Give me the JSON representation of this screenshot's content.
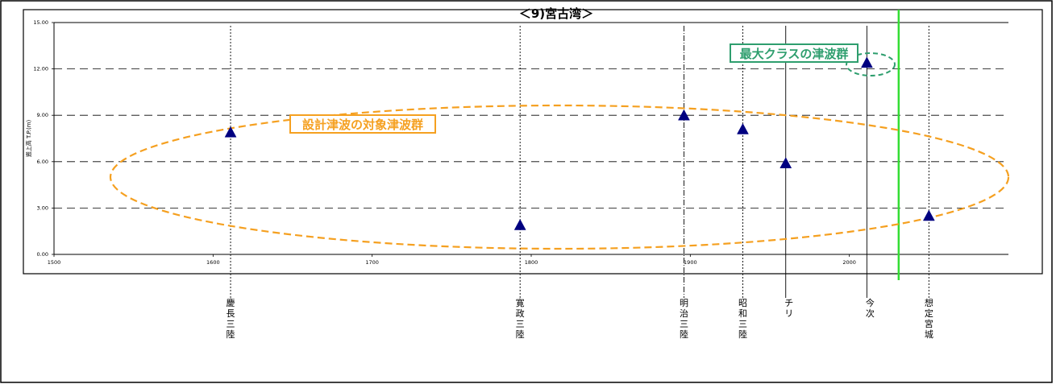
{
  "chart_data": {
    "type": "scatter",
    "title": "＜9)宮古湾＞",
    "ylabel": "遡上高 T.P.(m)",
    "xlabel": "",
    "xlim": [
      1500,
      2100
    ],
    "ylim": [
      0,
      15
    ],
    "x_ticks": [
      "1500",
      "1600",
      "1700",
      "1800",
      "1900",
      "2000"
    ],
    "y_ticks": [
      "0.00",
      "3.00",
      "6.00",
      "9.00",
      "12.00",
      "15.00"
    ],
    "grid": true,
    "series": [
      {
        "marker": "triangle",
        "color": "#000080",
        "points": [
          {
            "x": 1611,
            "y": 7.9
          },
          {
            "x": 1793,
            "y": 1.9
          },
          {
            "x": 1896,
            "y": 9.0
          },
          {
            "x": 1933,
            "y": 8.1
          },
          {
            "x": 1960,
            "y": 5.9
          },
          {
            "x": 2011,
            "y": 12.4
          },
          {
            "x": 2050,
            "y": 2.5
          }
        ]
      }
    ],
    "event_labels": [
      {
        "x": 1611,
        "text": "慶長三陸",
        "line": "dotted"
      },
      {
        "x": 1793,
        "text": "寛政三陸",
        "line": "dotted"
      },
      {
        "x": 1896,
        "text": "明治三陸",
        "line": "dashdot"
      },
      {
        "x": 1933,
        "text": "昭和三陸",
        "line": "dotted"
      },
      {
        "x": 1960,
        "text": "チリ",
        "line": "solid"
      },
      {
        "x": 2011,
        "text": "今次",
        "line": "solid"
      },
      {
        "x": 2050,
        "text": "想定宮城",
        "line": "dotted"
      }
    ],
    "green_line_x": 2031,
    "annotations": [
      {
        "text": "設計津波の対象津波群",
        "color": "#f5a020"
      },
      {
        "text": "最大クラスの津波群",
        "color": "#2e9e6e"
      }
    ]
  },
  "colors": {
    "marker": "#000080",
    "orange": "#f5a020",
    "teal": "#2e9e6e",
    "green_line": "#33dd33",
    "grid": "#000000"
  }
}
